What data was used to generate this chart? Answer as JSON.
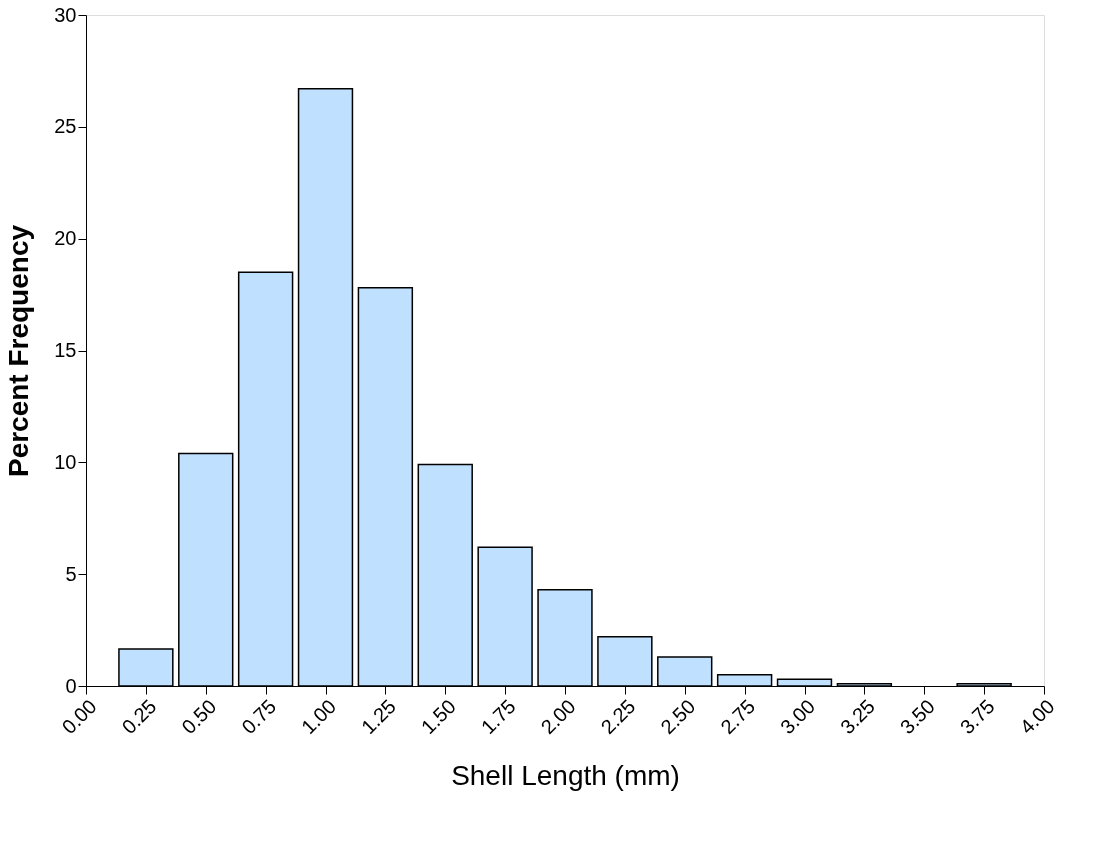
{
  "chart_data": {
    "type": "bar",
    "xlabel": "Shell Length (mm)",
    "ylabel": "Percent Frequency",
    "x": [
      0.25,
      0.5,
      0.75,
      1.0,
      1.25,
      1.5,
      1.75,
      2.0,
      2.25,
      2.5,
      2.75,
      3.0,
      3.25,
      3.5,
      3.75
    ],
    "values": [
      1.65,
      10.4,
      18.5,
      26.7,
      17.8,
      9.9,
      6.2,
      4.3,
      2.2,
      1.3,
      0.5,
      0.3,
      0.1,
      null,
      0.1
    ],
    "color": "#bfe0ff",
    "xlim": [
      0,
      4
    ],
    "xticks": [
      {
        "value": 0,
        "label": "0.00"
      },
      {
        "value": 0.25,
        "label": "0.25"
      },
      {
        "value": 0.5,
        "label": "0.50"
      },
      {
        "value": 0.75,
        "label": "0.75"
      },
      {
        "value": 1,
        "label": "1.00"
      },
      {
        "value": 1.25,
        "label": "1.25"
      },
      {
        "value": 1.5,
        "label": "1.50"
      },
      {
        "value": 1.75,
        "label": "1.75"
      },
      {
        "value": 2,
        "label": "2.00"
      },
      {
        "value": 2.25,
        "label": "2.25"
      },
      {
        "value": 2.5,
        "label": "2.50"
      },
      {
        "value": 2.75,
        "label": "2.75"
      },
      {
        "value": 3,
        "label": "3.00"
      },
      {
        "value": 3.25,
        "label": "3.25"
      },
      {
        "value": 3.5,
        "label": "3.50"
      },
      {
        "value": 3.75,
        "label": "3.75"
      },
      {
        "value": 4,
        "label": "4.00"
      }
    ],
    "ylim": [
      0,
      30
    ],
    "yticks": [
      0,
      5,
      10,
      15,
      20,
      25,
      30
    ],
    "grid": false
  }
}
